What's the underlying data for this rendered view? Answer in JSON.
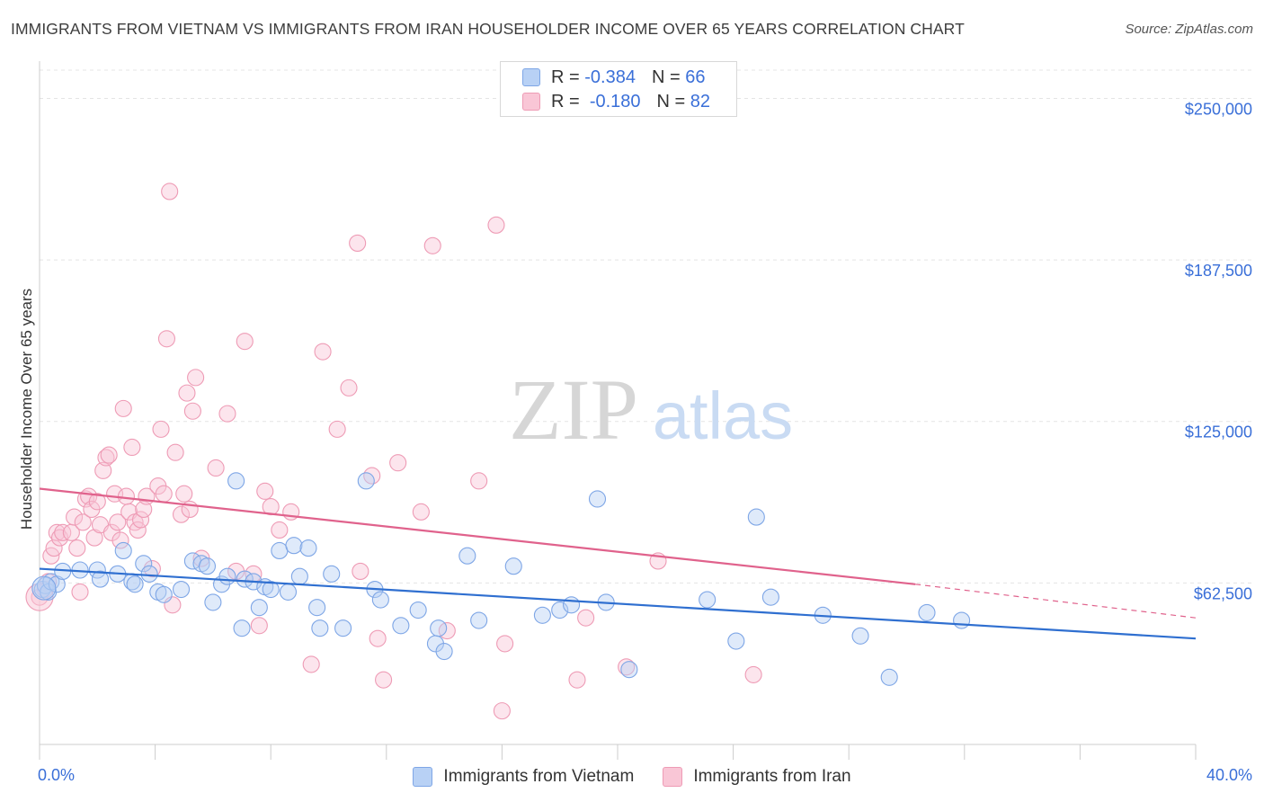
{
  "title": "IMMIGRANTS FROM VIETNAM VS IMMIGRANTS FROM IRAN HOUSEHOLDER INCOME OVER 65 YEARS CORRELATION CHART",
  "source": "Source: ZipAtlas.com",
  "watermark": {
    "zip": "ZIP",
    "atlas": "atlas"
  },
  "legend_top": {
    "vietnam": {
      "r_label": "R =",
      "r_value": "-0.384",
      "n_label": "N =",
      "n_value": "66"
    },
    "iran": {
      "r_label": "R =",
      "r_value": "-0.180",
      "n_label": "N =",
      "n_value": "82"
    }
  },
  "colors": {
    "vietnam_fill": "#b8d1f5",
    "vietnam_stroke": "#7ea6e6",
    "vietnam_line": "#2f6fd0",
    "iran_fill": "#f9c6d6",
    "iran_stroke": "#ee9bb5",
    "iran_line": "#e0628c",
    "axis_text": "#3a6fd8",
    "grid": "#e4e4e4"
  },
  "chart_data": {
    "type": "scatter",
    "title": "IMMIGRANTS FROM VIETNAM VS IMMIGRANTS FROM IRAN HOUSEHOLDER INCOME OVER 65 YEARS CORRELATION CHART",
    "xlabel": "",
    "ylabel": "Householder Income Over 65 years",
    "xlim": [
      0,
      40
    ],
    "ylim": [
      0,
      262000
    ],
    "x_tick_labels": [
      "0.0%",
      "40.0%"
    ],
    "y_ticks": [
      62500,
      125000,
      187500,
      250000
    ],
    "y_tick_labels": [
      "$62,500",
      "$125,000",
      "$187,500",
      "$250,000"
    ],
    "grid": true,
    "legend_position": "top-center",
    "series": [
      {
        "name": "Immigrants from Vietnam",
        "r": -0.384,
        "n": 66,
        "trend": {
          "x": [
            0,
            40
          ],
          "y": [
            68000,
            41000
          ]
        },
        "points": [
          [
            0.1,
            60000
          ],
          [
            0.2,
            61500
          ],
          [
            0.3,
            59000
          ],
          [
            0.4,
            63000
          ],
          [
            0.6,
            62000
          ],
          [
            0.8,
            67000
          ],
          [
            1.4,
            67500
          ],
          [
            2.0,
            67500
          ],
          [
            2.1,
            64000
          ],
          [
            2.7,
            66000
          ],
          [
            2.9,
            75000
          ],
          [
            3.2,
            63000
          ],
          [
            3.3,
            62000
          ],
          [
            3.6,
            70000
          ],
          [
            3.8,
            66000
          ],
          [
            4.1,
            59000
          ],
          [
            4.3,
            58000
          ],
          [
            4.9,
            60000
          ],
          [
            5.3,
            71000
          ],
          [
            5.6,
            70000
          ],
          [
            5.8,
            69000
          ],
          [
            6.0,
            55000
          ],
          [
            6.3,
            62000
          ],
          [
            6.5,
            65000
          ],
          [
            6.8,
            102000
          ],
          [
            7.0,
            45000
          ],
          [
            7.1,
            64000
          ],
          [
            7.4,
            63000
          ],
          [
            7.6,
            53000
          ],
          [
            7.8,
            61000
          ],
          [
            8.0,
            60000
          ],
          [
            8.3,
            75000
          ],
          [
            8.6,
            59000
          ],
          [
            8.8,
            77000
          ],
          [
            9.3,
            76000
          ],
          [
            9.0,
            65000
          ],
          [
            9.6,
            53000
          ],
          [
            9.7,
            45000
          ],
          [
            10.1,
            66000
          ],
          [
            10.5,
            45000
          ],
          [
            11.3,
            102000
          ],
          [
            11.6,
            60000
          ],
          [
            11.8,
            56000
          ],
          [
            12.5,
            46000
          ],
          [
            13.1,
            52000
          ],
          [
            13.7,
            39000
          ],
          [
            13.8,
            45000
          ],
          [
            14.0,
            36000
          ],
          [
            14.8,
            73000
          ],
          [
            15.2,
            48000
          ],
          [
            16.4,
            69000
          ],
          [
            17.4,
            50000
          ],
          [
            18.0,
            52000
          ],
          [
            18.4,
            54000
          ],
          [
            19.3,
            95000
          ],
          [
            19.6,
            55000
          ],
          [
            20.4,
            29000
          ],
          [
            23.1,
            56000
          ],
          [
            24.1,
            40000
          ],
          [
            24.8,
            88000
          ],
          [
            25.3,
            57000
          ],
          [
            27.1,
            50000
          ],
          [
            28.4,
            42000
          ],
          [
            29.4,
            26000
          ],
          [
            30.7,
            51000
          ],
          [
            31.9,
            48000
          ]
        ]
      },
      {
        "name": "Immigrants from Iran",
        "r": -0.18,
        "n": 82,
        "trend": {
          "x": [
            0,
            30.3
          ],
          "y": [
            99000,
            62000
          ],
          "dashed_extension": {
            "x": [
              30.3,
              40
            ],
            "y": [
              62000,
              49000
            ]
          }
        },
        "points": [
          [
            0.0,
            57000
          ],
          [
            0.2,
            60000
          ],
          [
            0.3,
            63000
          ],
          [
            0.4,
            73000
          ],
          [
            0.5,
            76000
          ],
          [
            0.6,
            82000
          ],
          [
            0.7,
            80000
          ],
          [
            0.8,
            82000
          ],
          [
            1.1,
            82000
          ],
          [
            1.2,
            88000
          ],
          [
            1.3,
            76000
          ],
          [
            1.4,
            59000
          ],
          [
            1.5,
            86000
          ],
          [
            1.6,
            95000
          ],
          [
            1.7,
            96000
          ],
          [
            1.8,
            91000
          ],
          [
            1.9,
            80000
          ],
          [
            2.0,
            94000
          ],
          [
            2.1,
            85000
          ],
          [
            2.2,
            106000
          ],
          [
            2.3,
            111000
          ],
          [
            2.4,
            112000
          ],
          [
            2.5,
            82000
          ],
          [
            2.6,
            97000
          ],
          [
            2.7,
            86000
          ],
          [
            2.8,
            79000
          ],
          [
            2.9,
            130000
          ],
          [
            3.0,
            96000
          ],
          [
            3.1,
            90000
          ],
          [
            3.2,
            115000
          ],
          [
            3.3,
            86000
          ],
          [
            3.4,
            83000
          ],
          [
            3.5,
            87000
          ],
          [
            3.6,
            91000
          ],
          [
            3.7,
            96000
          ],
          [
            3.9,
            68000
          ],
          [
            4.1,
            100000
          ],
          [
            4.2,
            122000
          ],
          [
            4.3,
            97000
          ],
          [
            4.4,
            157000
          ],
          [
            4.5,
            214000
          ],
          [
            4.6,
            54000
          ],
          [
            4.7,
            113000
          ],
          [
            4.9,
            89000
          ],
          [
            5.0,
            97000
          ],
          [
            5.1,
            136000
          ],
          [
            5.2,
            91000
          ],
          [
            5.3,
            129000
          ],
          [
            5.4,
            142000
          ],
          [
            5.6,
            72000
          ],
          [
            6.1,
            107000
          ],
          [
            6.5,
            128000
          ],
          [
            6.8,
            67000
          ],
          [
            7.1,
            156000
          ],
          [
            7.4,
            66000
          ],
          [
            7.6,
            46000
          ],
          [
            7.8,
            98000
          ],
          [
            8.0,
            92000
          ],
          [
            8.3,
            83000
          ],
          [
            8.7,
            90000
          ],
          [
            9.4,
            31000
          ],
          [
            9.8,
            152000
          ],
          [
            10.3,
            122000
          ],
          [
            10.7,
            138000
          ],
          [
            11.0,
            194000
          ],
          [
            11.1,
            67000
          ],
          [
            11.5,
            104000
          ],
          [
            11.7,
            41000
          ],
          [
            11.9,
            25000
          ],
          [
            12.4,
            109000
          ],
          [
            13.2,
            90000
          ],
          [
            13.6,
            193000
          ],
          [
            14.1,
            44000
          ],
          [
            15.2,
            102000
          ],
          [
            15.8,
            201000
          ],
          [
            16.0,
            13000
          ],
          [
            16.1,
            39000
          ],
          [
            18.6,
            25000
          ],
          [
            18.9,
            49000
          ],
          [
            20.3,
            30000
          ],
          [
            21.4,
            71000
          ],
          [
            24.7,
            27000
          ]
        ]
      }
    ]
  },
  "legend_bottom": [
    "Immigrants from Vietnam",
    "Immigrants from Iran"
  ]
}
